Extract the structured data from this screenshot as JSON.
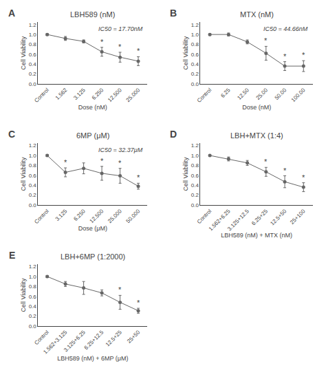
{
  "chart_data": [
    {
      "type": "line",
      "label": "A",
      "title": "LBH589 (nM)",
      "xlabel": "Dose (nM)",
      "ylabel": "Cell Viability",
      "categories": [
        "Control",
        "1.562",
        "3.125",
        "6.250",
        "12.500",
        "25.000"
      ],
      "values": [
        1.0,
        0.92,
        0.86,
        0.65,
        0.54,
        0.46
      ],
      "errors": [
        0.02,
        0.04,
        0.03,
        0.09,
        0.1,
        0.09
      ],
      "annotations": [
        {
          "text": "IC50 = 17.70nM"
        },
        {
          "category": "6.250",
          "text": "*"
        },
        {
          "category": "12.500",
          "text": "*"
        },
        {
          "category": "25.000",
          "text": "*"
        }
      ],
      "color": "#666666",
      "marker": "circle",
      "line_style": "solid",
      "grid": false,
      "ylim": [
        0,
        1.25
      ],
      "yticks": [
        {
          "value": 0,
          "label": "0.0"
        },
        0.2,
        0.4,
        0.6,
        0.8,
        {
          "value": 1.0,
          "label": "1.0"
        },
        1.2
      ]
    },
    {
      "type": "line",
      "label": "B",
      "title": "MTX (nM)",
      "xlabel": "Dose (nM)",
      "ylabel": "Cell Viability",
      "categories": [
        "Control",
        "6.25",
        "12.50",
        "25.00",
        "50.00",
        "100.00"
      ],
      "values": [
        1.0,
        1.0,
        0.85,
        0.62,
        0.36,
        0.36
      ],
      "errors": [
        0.02,
        0.03,
        0.04,
        0.14,
        0.09,
        0.11
      ],
      "annotations": [
        {
          "text": "IC50 = 44.66nM"
        },
        {
          "category": "25.00",
          "text": "*"
        },
        {
          "category": "50.00",
          "text": "*"
        },
        {
          "category": "100.00",
          "text": "*"
        }
      ],
      "color": "#666666",
      "marker": "circle",
      "line_style": "solid",
      "grid": false,
      "ylim": [
        0,
        1.25
      ],
      "yticks": [
        {
          "value": 0,
          "label": "0.0"
        },
        0.2,
        0.4,
        0.6,
        0.8,
        {
          "value": 1.0,
          "label": "1.0"
        },
        1.2
      ]
    },
    {
      "type": "line",
      "label": "C",
      "title": "6MP (μM)",
      "xlabel": "Dose (μM)",
      "ylabel": "Cell Viability",
      "categories": [
        "Control",
        "3.125",
        "6.250",
        "12.500",
        "25.000",
        "50.000"
      ],
      "values": [
        1.0,
        0.66,
        0.74,
        0.64,
        0.59,
        0.38
      ],
      "errors": [
        0.02,
        0.09,
        0.11,
        0.14,
        0.15,
        0.06
      ],
      "annotations": [
        {
          "text": "IC50 = 32.37μM"
        },
        {
          "category": "3.125",
          "text": "*"
        },
        {
          "category": "12.500",
          "text": "*"
        },
        {
          "category": "25.000",
          "text": "*"
        },
        {
          "category": "50.000",
          "text": "*"
        }
      ],
      "color": "#666666",
      "marker": "circle",
      "line_style": "solid",
      "grid": false,
      "ylim": [
        0,
        1.25
      ],
      "yticks": [
        {
          "value": 0,
          "label": "0.0"
        },
        0.2,
        0.4,
        0.6,
        0.8,
        {
          "value": 1.0,
          "label": "1.0"
        },
        1.2
      ]
    },
    {
      "type": "line",
      "label": "D",
      "title": "LBH+MTX (1:4)",
      "xlabel": "LBH589 (nM) + MTX (nM)",
      "ylabel": "Cell Viability",
      "categories": [
        "Control",
        "1.562+6.25",
        "3.125+12.5",
        "6.25+25",
        "12.5+50",
        "25+100"
      ],
      "values": [
        1.0,
        0.93,
        0.85,
        0.67,
        0.47,
        0.36
      ],
      "errors": [
        0.02,
        0.04,
        0.05,
        0.09,
        0.12,
        0.09
      ],
      "annotations": [
        {
          "category": "6.25+25",
          "text": "*"
        },
        {
          "category": "12.5+50",
          "text": "*"
        },
        {
          "category": "25+100",
          "text": "*"
        }
      ],
      "color": "#666666",
      "marker": "circle",
      "line_style": "solid",
      "grid": false,
      "ylim": [
        0,
        1.25
      ],
      "yticks": [
        {
          "value": 0,
          "label": "0.0"
        },
        0.2,
        0.4,
        0.6,
        0.8,
        {
          "value": 1.0,
          "label": "1.0"
        },
        1.2
      ]
    },
    {
      "type": "line",
      "label": "E",
      "title": "LBH+6MP (1:2000)",
      "xlabel": "LBH589 (nM) + 6MP (μM)",
      "ylabel": "Cell Viability",
      "categories": [
        "Control",
        "1.562+3.125",
        "3.125+6.25",
        "6.25+12.5",
        "12.5+25",
        "25+50"
      ],
      "values": [
        1.0,
        0.85,
        0.77,
        0.67,
        0.48,
        0.31
      ],
      "errors": [
        0.02,
        0.05,
        0.13,
        0.06,
        0.14,
        0.05
      ],
      "annotations": [
        {
          "category": "12.5+25",
          "text": "*"
        },
        {
          "category": "25+50",
          "text": "*"
        }
      ],
      "color": "#666666",
      "marker": "circle",
      "line_style": "solid",
      "grid": false,
      "ylim": [
        0,
        1.25
      ],
      "yticks": [
        {
          "value": 0,
          "label": "0.0"
        },
        0.2,
        0.4,
        0.6,
        0.8,
        {
          "value": 1.0,
          "label": "1.0"
        },
        1.2
      ]
    }
  ]
}
